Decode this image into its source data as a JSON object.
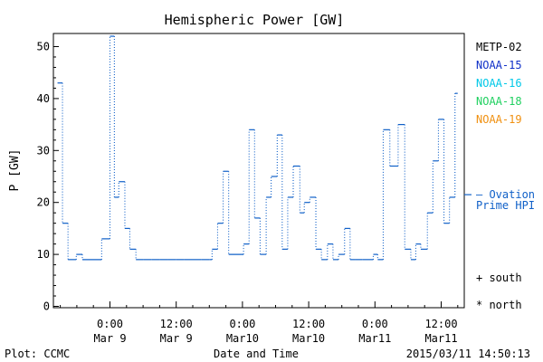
{
  "chart_data": {
    "type": "line",
    "title": "Hemispheric Power [GW]",
    "ylabel": "P [GW]",
    "xlabel": "Date and Time",
    "ylim": [
      0,
      53
    ],
    "yticks": [
      0,
      10,
      20,
      30,
      40,
      50
    ],
    "xticks": [
      {
        "t": 0,
        "time": "0:00",
        "date": "Mar 9"
      },
      {
        "t": 12,
        "time": "12:00",
        "date": "Mar 9"
      },
      {
        "t": 24,
        "time": "0:00",
        "date": "Mar10"
      },
      {
        "t": 36,
        "time": "12:00",
        "date": "Mar10"
      },
      {
        "t": 48,
        "time": "0:00",
        "date": "Mar11"
      },
      {
        "t": 60,
        "time": "12:00",
        "date": "Mar11"
      }
    ],
    "legend": [
      {
        "name": "METP-02",
        "color": "#000000"
      },
      {
        "name": "NOAA-15",
        "color": "#1030c8"
      },
      {
        "name": "NOAA-16",
        "color": "#00c8e8"
      },
      {
        "name": "NOAA-18",
        "color": "#20d060"
      },
      {
        "name": "NOAA-19",
        "color": "#f09010"
      }
    ],
    "ovation_label": [
      "— Ovation",
      "Prime HPI"
    ],
    "ovation_color": "#1060c8",
    "ovation_value": 21.5,
    "marker_legend": [
      {
        "symbol": "+",
        "label": "south"
      },
      {
        "symbol": "*",
        "label": "north"
      }
    ],
    "series": [
      {
        "name": "Ovation Prime HPI",
        "color": "#1060c8",
        "t": [
          -9.5,
          -8.6,
          -7.6,
          -6.1,
          -5.0,
          -1.5,
          0.0,
          0.8,
          1.6,
          2.7,
          3.6,
          4.7,
          6.0,
          7.5,
          9.0,
          10.5,
          12.0,
          13.5,
          15.0,
          16.5,
          18.0,
          18.5,
          19.5,
          20.5,
          21.5,
          24.2,
          25.2,
          26.2,
          27.2,
          28.3,
          29.2,
          30.3,
          31.2,
          32.2,
          33.2,
          34.4,
          35.2,
          36.2,
          37.3,
          38.3,
          39.4,
          40.4,
          41.4,
          42.5,
          43.5,
          44.5,
          45.7,
          47.7,
          48.5,
          49.5,
          50.7,
          52.2,
          53.4,
          54.5,
          55.4,
          56.3,
          57.5,
          58.5,
          59.5,
          60.5,
          61.5,
          62.5
        ],
        "values": [
          43,
          16,
          9,
          10,
          9,
          13,
          52,
          21,
          24,
          15,
          11,
          9,
          9,
          9,
          9,
          9,
          9,
          9,
          9,
          9,
          9,
          11,
          16,
          26,
          10,
          12,
          34,
          17,
          10,
          21,
          25,
          33,
          11,
          21,
          27,
          18,
          20,
          21,
          11,
          9,
          12,
          9,
          10,
          15,
          9,
          9,
          9,
          10,
          9,
          34,
          27,
          35,
          11,
          9,
          12,
          11,
          18,
          28,
          36,
          16,
          21,
          41
        ]
      }
    ]
  },
  "footer": {
    "plot_label": "Plot: CCMC",
    "timestamp": "2015/03/11  14:50:13"
  }
}
